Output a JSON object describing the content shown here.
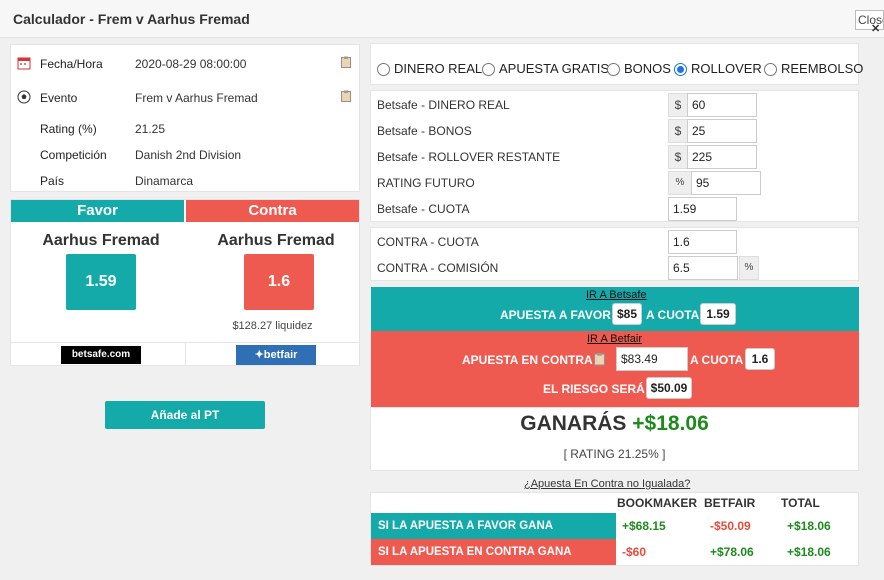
{
  "window": {
    "title": "Calculador - Frem v Aarhus Fremad",
    "close_label": "Close"
  },
  "event_info": {
    "rows": [
      {
        "label": "Fecha/Hora",
        "value": "2020-08-29 08:00:00",
        "icon": "calendar-icon",
        "copy": true
      },
      {
        "label": "Evento",
        "value": "Frem v Aarhus Fremad",
        "icon": "soccer-ball-icon",
        "copy": true
      },
      {
        "label": "Rating (%)",
        "value": "21.25"
      },
      {
        "label": "Competición",
        "value": "Danish 2nd Division"
      },
      {
        "label": "País",
        "value": "Dinamarca"
      }
    ]
  },
  "favor": {
    "header": "Favor",
    "team": "Aarhus Fremad",
    "odds": "1.59",
    "bookmaker_logo": "betsafe.com"
  },
  "contra": {
    "header": "Contra",
    "team": "Aarhus Fremad",
    "odds": "1.6",
    "liquidity": "$128.27 liquidez",
    "exchange_logo": "betfair"
  },
  "add_button": "Añade al PT",
  "bet_types": [
    {
      "label": "DINERO REAL",
      "selected": false
    },
    {
      "label": "APUESTA GRATIS",
      "selected": false
    },
    {
      "label": "BONOS",
      "selected": false
    },
    {
      "label": "ROLLOVER",
      "selected": true
    },
    {
      "label": "REEMBOLSO",
      "selected": false
    }
  ],
  "inputs": {
    "dinero_real": {
      "label": "Betsafe - DINERO REAL",
      "prefix": "$",
      "value": "60"
    },
    "bonos": {
      "label": "Betsafe - BONOS",
      "prefix": "$",
      "value": "25"
    },
    "rollover": {
      "label": "Betsafe - ROLLOVER RESTANTE",
      "prefix": "$",
      "value": "225"
    },
    "rating_futuro": {
      "label": "RATING FUTURO",
      "prefix": "%",
      "value": "95"
    },
    "cuota": {
      "label": "Betsafe - CUOTA",
      "value": "1.59"
    },
    "contra_cuota": {
      "label": "CONTRA - CUOTA",
      "value": "1.6"
    },
    "contra_comision": {
      "label": "CONTRA - COMISIÓN",
      "value": "6.5",
      "suffix": "%"
    }
  },
  "favor_strip": {
    "link": "IR A Betsafe",
    "text1": "APUESTA A FAVOR",
    "stake": "$85",
    "text2": "A CUOTA",
    "odds": "1.59"
  },
  "contra_strip": {
    "link": "IR A Betfair",
    "text1": "APUESTA EN CONTRA",
    "stake": "$83.49",
    "text2": "A CUOTA",
    "odds": "1.6",
    "risk_label": "EL RIESGO SERÁ",
    "risk": "$50.09"
  },
  "result": {
    "label": "GANARÁS",
    "amount": "+$18.06",
    "rating": "[ RATING 21.25% ]"
  },
  "unmatched_link": "¿Apuesta En Contra no Igualada?",
  "table": {
    "headers": [
      "BOOKMAKER",
      "BETFAIR",
      "TOTAL"
    ],
    "rows": [
      {
        "label": "SI LA APUESTA A FAVOR GANA",
        "bookmaker": "+$68.15",
        "betfair": "-$50.09",
        "total": "+$18.06"
      },
      {
        "label": "SI LA APUESTA EN CONTRA GANA",
        "bookmaker": "-$60",
        "betfair": "+$78.06",
        "total": "+$18.06"
      }
    ]
  },
  "colors": {
    "teal": "#13aaa9",
    "red": "#ef5a50",
    "green": "#1e8a1e"
  }
}
